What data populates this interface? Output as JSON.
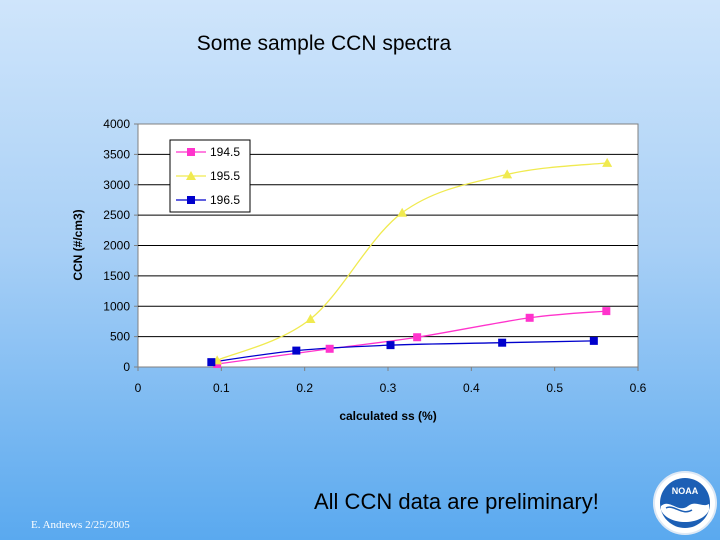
{
  "slide": {
    "title": "Some sample CCN spectra",
    "note": "All CCN data are preliminary!",
    "credit": "E. Andrews  2/25/2005",
    "logo_text": "NOAA"
  },
  "chart_data": {
    "type": "line",
    "title": "",
    "xlabel": "calculated ss (%)",
    "ylabel": "CCN (#/cm3)",
    "xlim": [
      0,
      0.6
    ],
    "ylim": [
      0,
      4000
    ],
    "xticks": [
      0,
      0.1,
      0.2,
      0.3,
      0.4,
      0.5,
      0.6
    ],
    "yticks": [
      0,
      500,
      1000,
      1500,
      2000,
      2500,
      3000,
      3500,
      4000
    ],
    "grid": "horizontal",
    "legend_position": "top-left",
    "series": [
      {
        "name": "194.5",
        "color": "#ff33cc",
        "marker": "square",
        "x": [
          0.095,
          0.23,
          0.335,
          0.47,
          0.562
        ],
        "y": [
          50,
          300,
          490,
          810,
          920
        ]
      },
      {
        "name": "195.5",
        "color": "#f0ea50",
        "marker": "triangle",
        "x": [
          0.095,
          0.207,
          0.317,
          0.443,
          0.563
        ],
        "y": [
          110,
          790,
          2540,
          3170,
          3360
        ]
      },
      {
        "name": "196.5",
        "color": "#0000cc",
        "marker": "square",
        "x": [
          0.088,
          0.19,
          0.303,
          0.437,
          0.547
        ],
        "y": [
          80,
          270,
          360,
          400,
          430
        ]
      }
    ]
  }
}
